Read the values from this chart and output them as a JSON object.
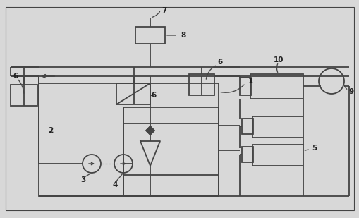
{
  "bg_color": "#d8d8d8",
  "line_color": "#444444",
  "lw": 1.3,
  "fig_width": 5.1,
  "fig_height": 3.09,
  "dpi": 100
}
